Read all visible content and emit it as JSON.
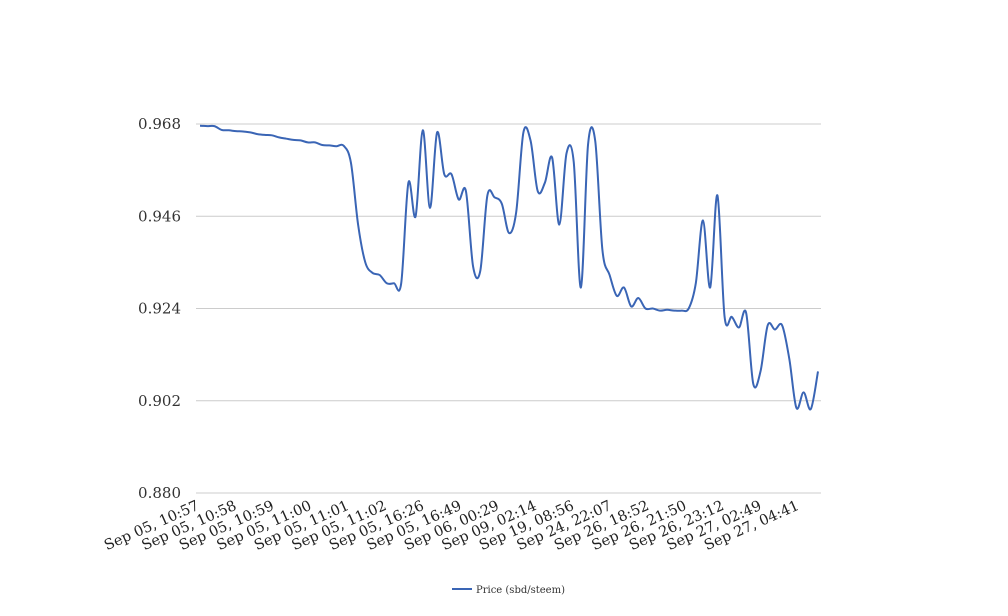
{
  "chart_data": {
    "type": "line",
    "title": "",
    "xlabel": "",
    "ylabel": "",
    "ylim": [
      0.88,
      0.968
    ],
    "yticks": [
      "0.968",
      "0.946",
      "0.924",
      "0.902",
      "0.880"
    ],
    "grid": true,
    "legend_position": "bottom",
    "colors": {
      "series": "#3a65b5",
      "grid": "#cccccc"
    },
    "x_tick_labels": [
      "Sep 05, 10:57",
      "Sep 05, 10:58",
      "Sep 05, 10:59",
      "Sep 05, 11:00",
      "Sep 05, 11:01",
      "Sep 05, 11:02",
      "Sep 05, 16:26",
      "Sep 05, 16:49",
      "Sep 06, 00:29",
      "Sep 09, 02:14",
      "Sep 19, 08:56",
      "Sep 24, 22:07",
      "Sep 26, 18:52",
      "Sep 26, 21:50",
      "Sep 26, 23:12",
      "Sep 27, 02:49",
      "Sep 27, 04:41"
    ],
    "series": [
      {
        "name": "Price (sbd/steem)",
        "values": [
          0.9676,
          0.9675,
          0.9675,
          0.9666,
          0.9665,
          0.9663,
          0.9662,
          0.966,
          0.9656,
          0.9654,
          0.9653,
          0.9648,
          0.9645,
          0.9642,
          0.9641,
          0.9636,
          0.9636,
          0.963,
          0.9629,
          0.9627,
          0.9628,
          0.9588,
          0.944,
          0.935,
          0.9325,
          0.932,
          0.93,
          0.93,
          0.93,
          0.954,
          0.946,
          0.9665,
          0.948,
          0.966,
          0.956,
          0.956,
          0.95,
          0.952,
          0.934,
          0.933,
          0.951,
          0.9505,
          0.949,
          0.942,
          0.947,
          0.966,
          0.964,
          0.952,
          0.954,
          0.96,
          0.944,
          0.961,
          0.959,
          0.929,
          0.963,
          0.964,
          0.938,
          0.932,
          0.927,
          0.929,
          0.9245,
          0.9265,
          0.924,
          0.924,
          0.9235,
          0.9237,
          0.9235,
          0.9235,
          0.924,
          0.93,
          0.945,
          0.929,
          0.951,
          0.922,
          0.922,
          0.9195,
          0.923,
          0.906,
          0.909,
          0.92,
          0.919,
          0.92,
          0.912,
          0.9003,
          0.904,
          0.9,
          0.909
        ]
      }
    ]
  }
}
